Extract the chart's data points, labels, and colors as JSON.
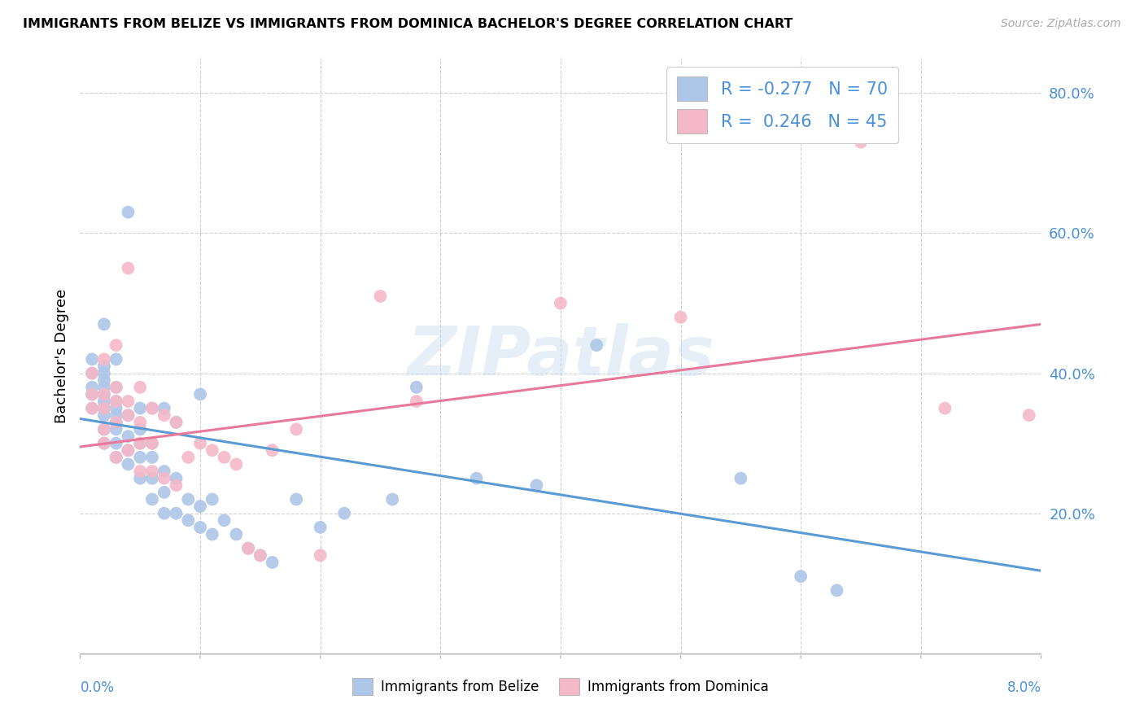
{
  "title": "IMMIGRANTS FROM BELIZE VS IMMIGRANTS FROM DOMINICA BACHELOR'S DEGREE CORRELATION CHART",
  "source": "Source: ZipAtlas.com",
  "ylabel": "Bachelor's Degree",
  "xlim": [
    0.0,
    0.08
  ],
  "ylim": [
    0.0,
    0.85
  ],
  "yticks": [
    0.2,
    0.4,
    0.6,
    0.8
  ],
  "ytick_labels": [
    "20.0%",
    "40.0%",
    "60.0%",
    "80.0%"
  ],
  "belize_color": "#aec6e8",
  "dominica_color": "#f4b8c8",
  "belize_line_color": "#5b9bd5",
  "dominica_line_color": "#e8799a",
  "belize_R": -0.277,
  "belize_N": 70,
  "dominica_R": 0.246,
  "dominica_N": 45,
  "watermark": "ZIPatlas",
  "belize_line_x0": 0.0,
  "belize_line_y0": 0.335,
  "belize_line_x1": 0.08,
  "belize_line_y1": 0.118,
  "dominica_line_x0": 0.0,
  "dominica_line_y0": 0.295,
  "dominica_line_x1": 0.08,
  "dominica_line_y1": 0.47,
  "belize_pts_x": [
    0.001,
    0.001,
    0.001,
    0.001,
    0.001,
    0.002,
    0.002,
    0.002,
    0.002,
    0.002,
    0.002,
    0.002,
    0.002,
    0.002,
    0.002,
    0.002,
    0.003,
    0.003,
    0.003,
    0.003,
    0.003,
    0.003,
    0.003,
    0.003,
    0.003,
    0.004,
    0.004,
    0.004,
    0.004,
    0.004,
    0.005,
    0.005,
    0.005,
    0.005,
    0.005,
    0.006,
    0.006,
    0.006,
    0.006,
    0.006,
    0.007,
    0.007,
    0.007,
    0.007,
    0.008,
    0.008,
    0.008,
    0.009,
    0.009,
    0.01,
    0.01,
    0.01,
    0.011,
    0.011,
    0.012,
    0.013,
    0.014,
    0.015,
    0.016,
    0.018,
    0.02,
    0.022,
    0.026,
    0.028,
    0.033,
    0.038,
    0.043,
    0.055,
    0.06,
    0.063
  ],
  "belize_pts_y": [
    0.35,
    0.37,
    0.38,
    0.4,
    0.42,
    0.3,
    0.32,
    0.34,
    0.35,
    0.36,
    0.37,
    0.38,
    0.39,
    0.4,
    0.41,
    0.47,
    0.28,
    0.3,
    0.32,
    0.33,
    0.34,
    0.35,
    0.36,
    0.38,
    0.42,
    0.27,
    0.29,
    0.31,
    0.34,
    0.63,
    0.25,
    0.28,
    0.3,
    0.32,
    0.35,
    0.22,
    0.25,
    0.28,
    0.3,
    0.35,
    0.2,
    0.23,
    0.26,
    0.35,
    0.2,
    0.25,
    0.33,
    0.19,
    0.22,
    0.18,
    0.21,
    0.37,
    0.17,
    0.22,
    0.19,
    0.17,
    0.15,
    0.14,
    0.13,
    0.22,
    0.18,
    0.2,
    0.22,
    0.38,
    0.25,
    0.24,
    0.44,
    0.25,
    0.11,
    0.09
  ],
  "dominica_pts_x": [
    0.001,
    0.001,
    0.001,
    0.002,
    0.002,
    0.002,
    0.002,
    0.002,
    0.003,
    0.003,
    0.003,
    0.003,
    0.003,
    0.004,
    0.004,
    0.004,
    0.004,
    0.005,
    0.005,
    0.005,
    0.005,
    0.006,
    0.006,
    0.006,
    0.007,
    0.007,
    0.008,
    0.008,
    0.009,
    0.01,
    0.011,
    0.012,
    0.013,
    0.014,
    0.015,
    0.016,
    0.018,
    0.02,
    0.025,
    0.028,
    0.04,
    0.05,
    0.065,
    0.072,
    0.079
  ],
  "dominica_pts_y": [
    0.35,
    0.37,
    0.4,
    0.3,
    0.32,
    0.35,
    0.37,
    0.42,
    0.28,
    0.33,
    0.36,
    0.38,
    0.44,
    0.29,
    0.34,
    0.36,
    0.55,
    0.26,
    0.3,
    0.33,
    0.38,
    0.26,
    0.3,
    0.35,
    0.25,
    0.34,
    0.24,
    0.33,
    0.28,
    0.3,
    0.29,
    0.28,
    0.27,
    0.15,
    0.14,
    0.29,
    0.32,
    0.14,
    0.51,
    0.36,
    0.5,
    0.48,
    0.73,
    0.35,
    0.34
  ]
}
